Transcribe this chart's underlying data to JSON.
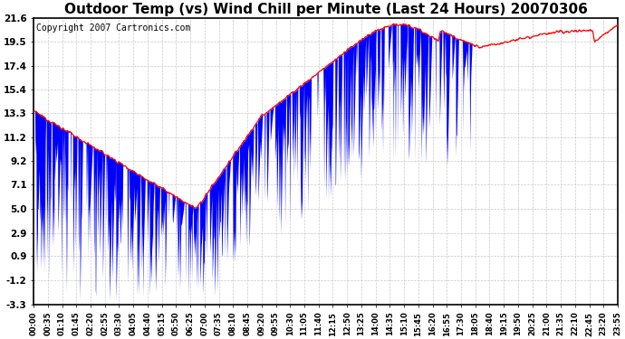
{
  "title": "Outdoor Temp (vs) Wind Chill per Minute (Last 24 Hours) 20070306",
  "copyright_text": "Copyright 2007 Cartronics.com",
  "yticks": [
    21.6,
    19.5,
    17.4,
    15.4,
    13.3,
    11.2,
    9.2,
    7.1,
    5.0,
    2.9,
    0.9,
    -1.2,
    -3.3
  ],
  "ymin": -3.3,
  "ymax": 21.6,
  "xtick_labels": [
    "00:00",
    "00:35",
    "01:10",
    "01:45",
    "02:20",
    "02:55",
    "03:30",
    "04:05",
    "04:40",
    "05:15",
    "05:50",
    "06:25",
    "07:00",
    "07:35",
    "08:10",
    "08:45",
    "09:20",
    "09:55",
    "10:30",
    "11:05",
    "11:40",
    "12:15",
    "12:50",
    "13:25",
    "14:00",
    "14:35",
    "15:10",
    "15:45",
    "16:20",
    "16:55",
    "17:30",
    "18:05",
    "18:40",
    "19:15",
    "19:50",
    "20:25",
    "21:00",
    "21:35",
    "22:10",
    "22:45",
    "23:20",
    "23:55"
  ],
  "bg_color": "#ffffff",
  "plot_bg_color": "#ffffff",
  "grid_color": "#bbbbbb",
  "line_color_outdoor": "red",
  "line_color_windchill": "blue",
  "title_fontsize": 11,
  "copyright_fontsize": 7
}
